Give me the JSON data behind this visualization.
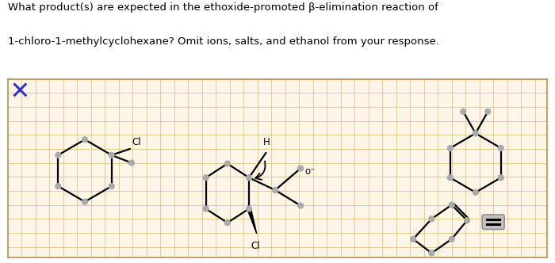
{
  "title_line1": "What product(s) are expected in the ethoxide-promoted β-elimination reaction of",
  "title_line2": "1-chloro-1-methylcyclohexane? Omit ions, salts, and ethanol from your response.",
  "bg_color": "#fdf6e8",
  "grid_color": "#e0b870",
  "border_color": "#b89050",
  "text_color": "#000000",
  "title_fontsize": 9.5,
  "x_mark_color": "#3333cc",
  "lw": 1.6,
  "dot_r": 3.5,
  "gray_dot": "#aaaaaa"
}
